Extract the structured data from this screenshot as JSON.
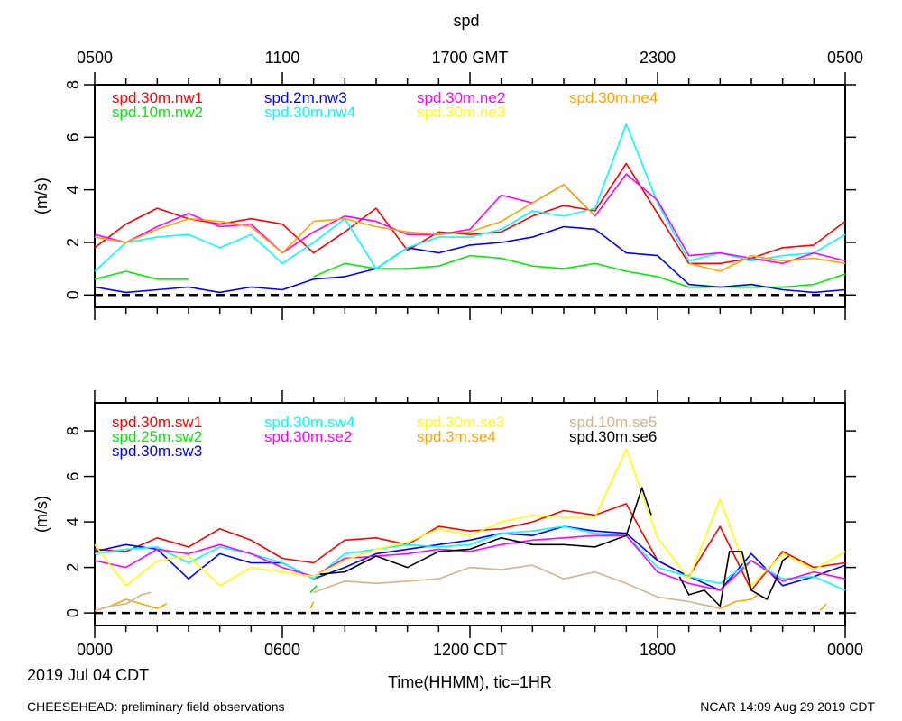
{
  "title": "spd",
  "top_axis": {
    "ticks": [
      "0500",
      "1100",
      "1700 GMT",
      "2300",
      "0500"
    ]
  },
  "bottom_axis": {
    "ticks": [
      "0000",
      "0600",
      "1200 CDT",
      "1800",
      "0000"
    ]
  },
  "date_label": "2019 Jul 04 CDT",
  "xlabel": "Time(HHMM), tic=1HR",
  "footer_left": "CHEESEHEAD: preliminary field observations",
  "footer_right": "NCAR 14:09 Aug 29 2019 CDT",
  "chart_data": [
    {
      "type": "line",
      "ylabel": "(m/s)",
      "ylim": [
        -0.47,
        8
      ],
      "yticks": [
        "0",
        "2",
        "4",
        "6",
        "8"
      ],
      "xlim_hours": [
        0,
        24
      ],
      "reference_line": 0,
      "series": [
        {
          "name": "spd.30m.nw1",
          "color": "#ff0000",
          "values": [
            1.8,
            2.7,
            3.3,
            2.9,
            2.7,
            2.9,
            2.7,
            1.6,
            2.4,
            3.3,
            1.7,
            2.4,
            2.3,
            2.4,
            3.0,
            3.4,
            3.2,
            5.0,
            3.1,
            1.2,
            1.2,
            1.4,
            1.8,
            1.9,
            2.8
          ]
        },
        {
          "name": "spd.10m.nw2",
          "color": "#00ee00",
          "values": [
            0.6,
            0.9,
            0.6,
            0.6,
            null,
            null,
            null,
            0.7,
            1.2,
            1.0,
            1.0,
            1.1,
            1.5,
            1.4,
            1.1,
            1.0,
            1.2,
            0.9,
            0.7,
            0.3,
            0.3,
            0.3,
            0.3,
            0.4,
            0.8
          ]
        },
        {
          "name": "spd.2m.nw3",
          "color": "#0000ff",
          "values": [
            0.3,
            0.1,
            0.2,
            0.3,
            0.1,
            0.3,
            0.2,
            0.6,
            0.7,
            1.0,
            1.8,
            1.6,
            1.9,
            2.0,
            2.2,
            2.6,
            2.5,
            1.6,
            1.5,
            0.4,
            0.3,
            0.4,
            0.2,
            0.1,
            0.2
          ]
        },
        {
          "name": "spd.30m.nw4",
          "color": "#00ffff",
          "values": [
            0.9,
            2.0,
            2.2,
            2.3,
            1.8,
            2.3,
            1.2,
            2.0,
            2.9,
            1.0,
            1.8,
            2.2,
            2.2,
            2.5,
            3.2,
            3.0,
            3.3,
            6.5,
            3.5,
            1.3,
            1.6,
            1.3,
            1.5,
            1.6,
            2.3
          ]
        },
        {
          "name": "spd.30m.ne2",
          "color": "#ff00ff",
          "values": [
            2.3,
            2.0,
            2.6,
            3.1,
            2.6,
            2.7,
            1.6,
            2.4,
            3.0,
            2.8,
            2.3,
            2.3,
            2.5,
            3.8,
            3.5,
            4.2,
            3.0,
            4.6,
            3.6,
            1.5,
            1.6,
            1.4,
            1.2,
            1.6,
            1.3
          ]
        },
        {
          "name": "spd.30m.ne3",
          "color": "#ffff00",
          "values": []
        },
        {
          "name": "spd.30m.ne4",
          "color": "#ffa500",
          "values": [
            2.2,
            2.0,
            2.5,
            2.9,
            2.8,
            2.6,
            1.6,
            2.8,
            2.9,
            2.6,
            2.4,
            2.3,
            2.4,
            2.8,
            3.5,
            4.2,
            3.0,
            null,
            null,
            1.2,
            0.9,
            1.5,
            1.3,
            1.4,
            1.2
          ]
        }
      ]
    },
    {
      "type": "line",
      "ylabel": "(m/s)",
      "ylim": [
        -0.55,
        9.23
      ],
      "yticks": [
        "0",
        "2",
        "4",
        "6",
        "8"
      ],
      "xlim_hours": [
        0,
        24
      ],
      "reference_line": 0,
      "series": [
        {
          "name": "spd.30m.sw1",
          "color": "#ff0000",
          "values": [
            2.8,
            2.7,
            3.3,
            2.9,
            3.7,
            3.2,
            2.4,
            2.2,
            3.2,
            3.3,
            3.0,
            3.8,
            3.6,
            3.7,
            4.0,
            4.5,
            4.3,
            4.8,
            2.3,
            1.6,
            3.8,
            1.0,
            2.7,
            2.0,
            2.2
          ]
        },
        {
          "name": "spd.25m.sw2",
          "color": "#00ee00",
          "points": [
            [
              6.9,
              0.9
            ],
            [
              7.1,
              1.2
            ]
          ]
        },
        {
          "name": "spd.30m.sw3",
          "color": "#0000ff",
          "values": [
            2.7,
            3.0,
            2.8,
            1.5,
            2.6,
            2.2,
            2.2,
            1.5,
            2.0,
            2.6,
            2.8,
            3.0,
            3.2,
            3.5,
            3.4,
            3.8,
            3.6,
            3.5,
            2.3,
            1.6,
            1.0,
            2.6,
            1.2,
            1.6,
            2.1
          ]
        },
        {
          "name": "spd.30m.sw4",
          "color": "#00ffff",
          "values": [
            2.6,
            2.8,
            2.9,
            2.2,
            2.9,
            2.6,
            2.2,
            1.5,
            2.6,
            2.8,
            3.0,
            2.9,
            3.0,
            3.5,
            3.6,
            3.8,
            3.5,
            3.4,
            2.0,
            1.6,
            1.3,
            2.3,
            1.5,
            1.6,
            1.0
          ]
        },
        {
          "name": "spd.30m.se2",
          "color": "#ff00ff",
          "values": [
            2.3,
            2.0,
            2.8,
            2.6,
            3.0,
            2.6,
            2.0,
            1.6,
            2.4,
            2.5,
            2.6,
            2.8,
            2.7,
            3.0,
            3.2,
            3.3,
            3.4,
            3.4,
            1.8,
            1.3,
            1.0,
            2.3,
            1.4,
            1.8,
            1.5
          ]
        },
        {
          "name": "spd.30m.se3",
          "color": "#ffff00",
          "values": [
            3.0,
            1.2,
            2.3,
            2.5,
            1.2,
            2.0,
            1.8,
            1.6,
            2.3,
            2.8,
            3.1,
            3.7,
            3.4,
            4.0,
            4.3,
            4.2,
            4.2,
            7.2,
            3.3,
            1.5,
            5.0,
            1.2,
            2.6,
            1.9,
            2.7
          ]
        },
        {
          "name": "spd.3m.se4",
          "color": "#ffa500",
          "points": [
            [
              0,
              0.1
            ],
            [
              0.5,
              0.3
            ],
            [
              1,
              0.6
            ],
            [
              1.5,
              0.4
            ],
            [
              2,
              0.2
            ],
            [
              2.3,
              0.4
            ],
            null,
            [
              6.9,
              0.2
            ],
            [
              7.0,
              0.5
            ],
            null,
            [
              19.3,
              0.4
            ],
            [
              19.7,
              0.3
            ],
            [
              20,
              0.2
            ],
            [
              20.5,
              0.5
            ],
            [
              21.0,
              0.6
            ],
            [
              21.2,
              0.8
            ],
            null,
            [
              23.2,
              0.1
            ],
            [
              23.4,
              0.4
            ]
          ]
        },
        {
          "name": "spd.10m.se5",
          "color": "#d2b48c",
          "points": [
            [
              0,
              0.1
            ],
            [
              0.5,
              0.3
            ],
            [
              1,
              0.4
            ],
            [
              1.5,
              0.8
            ],
            [
              1.8,
              0.9
            ],
            null,
            [
              7,
              0.9
            ],
            [
              8,
              1.4
            ],
            [
              9,
              1.3
            ],
            [
              10,
              1.4
            ],
            [
              11,
              1.5
            ],
            [
              12,
              2.0
            ],
            [
              13,
              1.9
            ],
            [
              14,
              2.1
            ],
            [
              15,
              1.5
            ],
            [
              16,
              1.8
            ],
            [
              17,
              1.3
            ],
            [
              18,
              0.7
            ],
            [
              19,
              0.5
            ],
            [
              20,
              0.2
            ]
          ]
        },
        {
          "name": "spd.30m.se6",
          "color": "#000000",
          "points": [
            [
              7.2,
              1.7
            ],
            [
              8,
              1.8
            ],
            [
              9,
              2.5
            ],
            [
              10,
              2.0
            ],
            [
              11,
              2.7
            ],
            [
              12,
              2.8
            ],
            [
              13,
              3.3
            ],
            [
              14,
              3.0
            ],
            [
              15,
              3.0
            ],
            [
              16,
              2.9
            ],
            [
              17,
              3.4
            ],
            [
              17.5,
              5.5
            ],
            [
              17.8,
              4.3
            ],
            null,
            [
              18.7,
              1.6
            ],
            [
              19,
              0.8
            ],
            [
              19.5,
              1.0
            ],
            [
              20,
              0.3
            ],
            [
              20.3,
              2.7
            ],
            [
              20.7,
              2.7
            ],
            [
              21,
              1.0
            ],
            [
              21.5,
              0.6
            ],
            [
              21.8,
              1.5
            ],
            [
              22,
              2.3
            ],
            [
              22.2,
              2.5
            ]
          ]
        }
      ]
    }
  ]
}
